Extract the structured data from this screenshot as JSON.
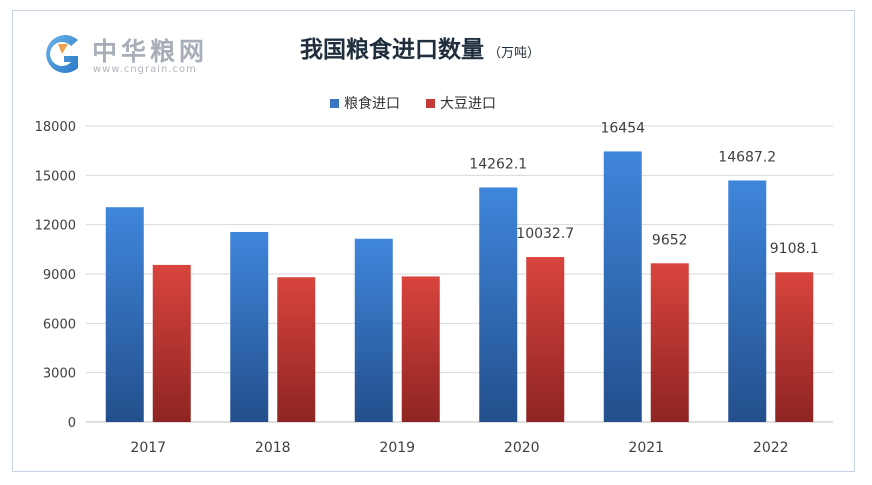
{
  "logo": {
    "name": "中华粮网",
    "url": "www.cngrain.com"
  },
  "chart_data": {
    "type": "bar",
    "title": "我国粮食进口数量",
    "unit": "（万吨）",
    "categories": [
      "2017",
      "2018",
      "2019",
      "2020",
      "2021",
      "2022"
    ],
    "series": [
      {
        "name": "粮食进口",
        "color": "#3a76c4",
        "values": [
          13062,
          11555,
          11144,
          14262.1,
          16454,
          14687.2
        ],
        "labels": [
          "",
          "",
          "",
          "14262.1",
          "16454",
          "14687.2"
        ]
      },
      {
        "name": "大豆进口",
        "color": "#c43a36",
        "values": [
          9553,
          8803,
          8851,
          10032.7,
          9652,
          9108.1
        ],
        "labels": [
          "",
          "",
          "",
          "10032.7",
          "9652",
          "9108.1"
        ]
      }
    ],
    "yticks": [
      "0",
      "3000",
      "6000",
      "9000",
      "12000",
      "15000",
      "18000"
    ],
    "ylim": [
      0,
      18000
    ],
    "grid": true,
    "legend": "top"
  }
}
